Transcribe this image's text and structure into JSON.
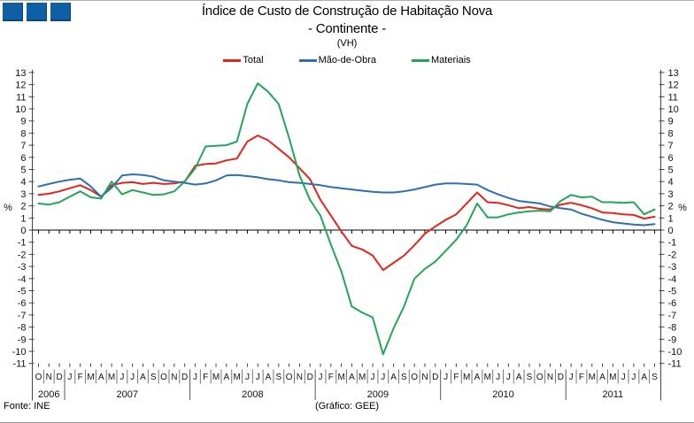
{
  "header": {
    "logo_squares": {
      "count": 3,
      "color": "#0f5fa5"
    },
    "title_line1": "Índice de Custo de Construção de Habitação Nova",
    "title_line2": "- Continente -",
    "subtitle": "(VH)"
  },
  "footer": {
    "source": "Fonte: INE",
    "credit": "(Gráfico: GEE)"
  },
  "chart_data": {
    "type": "line",
    "title": "Índice de Custo de Construção de Habitação Nova - Continente - (VH)",
    "ylabel": "%",
    "ylim": [
      -11,
      13
    ],
    "ytick_step": 1,
    "grid": false,
    "legend_position": "top-center",
    "x_axis_note": "monthly values Oct 2006 - Sep 2011",
    "categories": [
      "O",
      "N",
      "D",
      "J",
      "F",
      "M",
      "A",
      "M",
      "J",
      "J",
      "A",
      "S",
      "O",
      "N",
      "D",
      "J",
      "F",
      "M",
      "A",
      "M",
      "J",
      "J",
      "A",
      "S",
      "O",
      "N",
      "D",
      "J",
      "F",
      "M",
      "A",
      "M",
      "J",
      "J",
      "A",
      "S",
      "O",
      "N",
      "D",
      "J",
      "F",
      "M",
      "A",
      "M",
      "J",
      "J",
      "A",
      "S",
      "O",
      "N",
      "D",
      "J",
      "F",
      "M",
      "A",
      "M",
      "J",
      "J",
      "A",
      "S"
    ],
    "year_groups": [
      {
        "label": "2006",
        "months": 3
      },
      {
        "label": "2007",
        "months": 12
      },
      {
        "label": "2008",
        "months": 12
      },
      {
        "label": "2009",
        "months": 12
      },
      {
        "label": "2010",
        "months": 12
      },
      {
        "label": "2011",
        "months": 9
      }
    ],
    "series": [
      {
        "name": "Total",
        "color": "#e1261d",
        "values": [
          2.9,
          3.0,
          3.2,
          3.45,
          3.7,
          3.3,
          2.75,
          3.7,
          3.9,
          3.95,
          3.8,
          3.9,
          3.8,
          3.85,
          4.0,
          5.3,
          5.45,
          5.5,
          5.75,
          5.9,
          7.3,
          7.8,
          7.4,
          6.7,
          6.0,
          5.1,
          4.2,
          2.5,
          1.2,
          -0.1,
          -1.3,
          -1.6,
          -2.1,
          -3.3,
          -2.7,
          -2.1,
          -1.25,
          -0.3,
          0.3,
          0.85,
          1.3,
          2.2,
          3.1,
          2.3,
          2.25,
          2.05,
          1.8,
          1.9,
          1.75,
          1.7,
          2.1,
          2.25,
          2.05,
          1.8,
          1.45,
          1.4,
          1.3,
          1.25,
          0.95,
          1.1
        ]
      },
      {
        "name": "Mão-de-Obra",
        "color": "#2d6eb4",
        "values": [
          3.6,
          3.8,
          4.0,
          4.15,
          4.25,
          3.6,
          2.75,
          3.5,
          4.5,
          4.6,
          4.55,
          4.4,
          4.1,
          4.0,
          3.9,
          3.75,
          3.85,
          4.1,
          4.5,
          4.55,
          4.45,
          4.35,
          4.2,
          4.1,
          3.95,
          3.9,
          3.8,
          3.7,
          3.55,
          3.45,
          3.35,
          3.25,
          3.15,
          3.1,
          3.1,
          3.2,
          3.35,
          3.55,
          3.75,
          3.85,
          3.85,
          3.8,
          3.75,
          3.3,
          2.95,
          2.65,
          2.4,
          2.3,
          2.2,
          1.95,
          1.8,
          1.7,
          1.35,
          1.1,
          0.85,
          0.65,
          0.55,
          0.45,
          0.4,
          0.5
        ]
      },
      {
        "name": "Materiais",
        "color": "#24a55a",
        "values": [
          2.2,
          2.1,
          2.3,
          2.75,
          3.2,
          2.7,
          2.6,
          4.0,
          2.95,
          3.3,
          3.1,
          2.9,
          2.95,
          3.2,
          4.0,
          5.1,
          6.9,
          6.95,
          7.0,
          7.3,
          10.4,
          12.1,
          11.4,
          10.4,
          7.6,
          4.5,
          2.5,
          1.2,
          -1.2,
          -3.4,
          -6.3,
          -6.8,
          -7.2,
          -10.25,
          -8.1,
          -6.3,
          -4.0,
          -3.2,
          -2.6,
          -1.7,
          -0.8,
          0.4,
          2.2,
          1.05,
          1.05,
          1.3,
          1.45,
          1.55,
          1.6,
          1.55,
          2.4,
          2.9,
          2.7,
          2.75,
          2.3,
          2.3,
          2.25,
          2.3,
          1.3,
          1.7
        ]
      }
    ]
  }
}
